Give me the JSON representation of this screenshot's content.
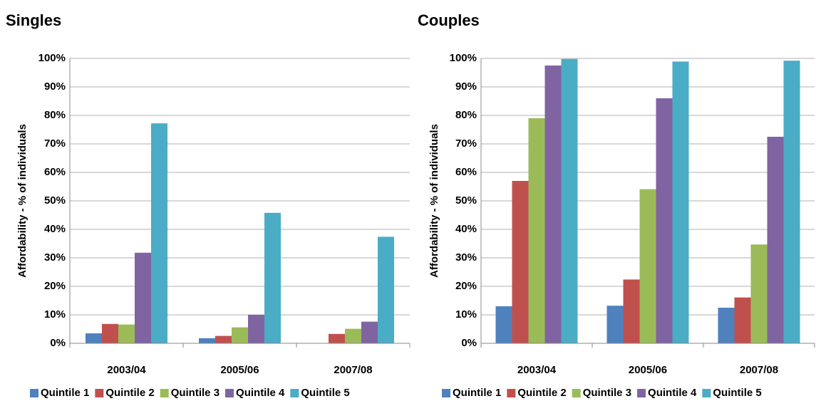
{
  "chart_data": [
    {
      "type": "bar",
      "title": "Singles",
      "y_label": "Affordability - % of individuals",
      "categories": [
        "2003/04",
        "2005/06",
        "2007/08"
      ],
      "series": [
        {
          "name": "Quintile 1",
          "color": "#4f81bd",
          "values": [
            3.5,
            1.8,
            0
          ]
        },
        {
          "name": "Quintile 2",
          "color": "#c0504d",
          "values": [
            6.8,
            2.6,
            3.3
          ]
        },
        {
          "name": "Quintile 3",
          "color": "#9bbb59",
          "values": [
            6.6,
            5.6,
            5.1
          ]
        },
        {
          "name": "Quintile 4",
          "color": "#8064a2",
          "values": [
            31.8,
            10,
            7.6
          ]
        },
        {
          "name": "Quintile 5",
          "color": "#4bacc6",
          "values": [
            77.2,
            45.8,
            37.4
          ]
        }
      ],
      "ylim": [
        0,
        100
      ],
      "yticks": [
        {
          "value": 0,
          "label": "0%"
        },
        {
          "value": 10,
          "label": "10%"
        },
        {
          "value": 20,
          "label": "20%"
        },
        {
          "value": 30,
          "label": "30%"
        },
        {
          "value": 40,
          "label": "40%"
        },
        {
          "value": 50,
          "label": "50%"
        },
        {
          "value": 60,
          "label": "60%"
        },
        {
          "value": 70,
          "label": "70%"
        },
        {
          "value": 80,
          "label": "80%"
        },
        {
          "value": 90,
          "label": "90%"
        },
        {
          "value": 100,
          "label": "100%"
        }
      ],
      "grid": true,
      "legend": "bottom"
    },
    {
      "type": "bar",
      "title": "Couples",
      "y_label": "Affordability - % of individuals",
      "categories": [
        "2003/04",
        "2005/06",
        "2007/08"
      ],
      "series": [
        {
          "name": "Quintile 1",
          "color": "#4f81bd",
          "values": [
            13,
            13.2,
            12.5
          ]
        },
        {
          "name": "Quintile 2",
          "color": "#c0504d",
          "values": [
            57,
            22.4,
            16.1
          ]
        },
        {
          "name": "Quintile 3",
          "color": "#9bbb59",
          "values": [
            79,
            54.1,
            34.7
          ]
        },
        {
          "name": "Quintile 4",
          "color": "#8064a2",
          "values": [
            97.5,
            86,
            72.5
          ]
        },
        {
          "name": "Quintile 5",
          "color": "#4bacc6",
          "values": [
            99.8,
            98.9,
            99.2
          ]
        }
      ],
      "ylim": [
        0,
        100
      ],
      "yticks": [
        {
          "value": 0,
          "label": "0%"
        },
        {
          "value": 10,
          "label": "10%"
        },
        {
          "value": 20,
          "label": "20%"
        },
        {
          "value": 30,
          "label": "30%"
        },
        {
          "value": 40,
          "label": "40%"
        },
        {
          "value": 50,
          "label": "50%"
        },
        {
          "value": 60,
          "label": "60%"
        },
        {
          "value": 70,
          "label": "70%"
        },
        {
          "value": 80,
          "label": "80%"
        },
        {
          "value": 90,
          "label": "90%"
        },
        {
          "value": 100,
          "label": "100%"
        }
      ],
      "grid": true,
      "legend": "bottom"
    }
  ]
}
